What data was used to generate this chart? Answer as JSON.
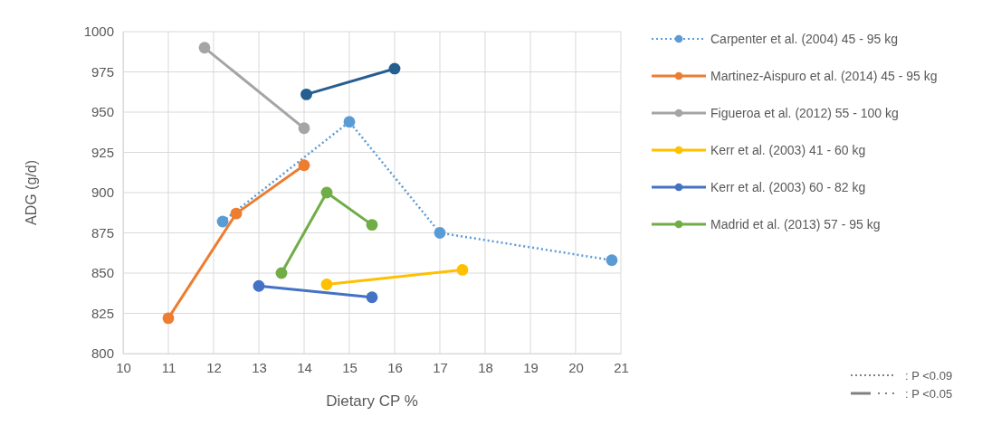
{
  "chart_data": {
    "type": "line",
    "xlabel": "Dietary CP %",
    "ylabel": "ADG (g/d)",
    "xlim": [
      10,
      21
    ],
    "xticks": [
      10,
      11,
      12,
      13,
      14,
      15,
      16,
      17,
      18,
      19,
      20,
      21
    ],
    "ylim": [
      800,
      1000
    ],
    "yticks": [
      800,
      825,
      850,
      875,
      900,
      925,
      950,
      975,
      1000
    ],
    "grid": true,
    "legend": "right",
    "marker": "circle",
    "line_style": "solid",
    "series": [
      {
        "name": "Carpenter et al. (2004) 45 - 95 kg",
        "color": "#5b9bd5",
        "line_style": "dotted",
        "x": [
          12.2,
          15,
          17,
          20.8
        ],
        "values": [
          882,
          944,
          875,
          858
        ]
      },
      {
        "name": "Martinez-Aispuro et al. (2014) 45 - 95 kg",
        "color": "#ed7d31",
        "x": [
          11,
          12.5,
          14
        ],
        "values": [
          822,
          887,
          917
        ]
      },
      {
        "name": "Figueroa et al. (2012) 55 - 100 kg",
        "color": "#a5a5a5",
        "x": [
          11.8,
          14
        ],
        "values": [
          990,
          940
        ]
      },
      {
        "name": "Kerr et al. (2003) 41 - 60 kg",
        "color": "#ffc000",
        "x": [
          14.5,
          17.5
        ],
        "values": [
          843,
          852
        ]
      },
      {
        "name": "Kerr et al. (2003) 60 - 82 kg",
        "color": "#4472c4",
        "x": [
          13,
          15.5
        ],
        "values": [
          842,
          835
        ]
      },
      {
        "name": "Madrid et al. (2013) 57 - 95 kg",
        "color": "#70ad47",
        "x": [
          13.5,
          14.5,
          15.5
        ],
        "values": [
          850,
          900,
          880
        ]
      },
      {
        "color": "#255e91",
        "x": [
          14.05,
          16
        ],
        "values": [
          961,
          977
        ]
      }
    ],
    "annotations": [
      ": P <0.09",
      ": P <0.05"
    ]
  }
}
